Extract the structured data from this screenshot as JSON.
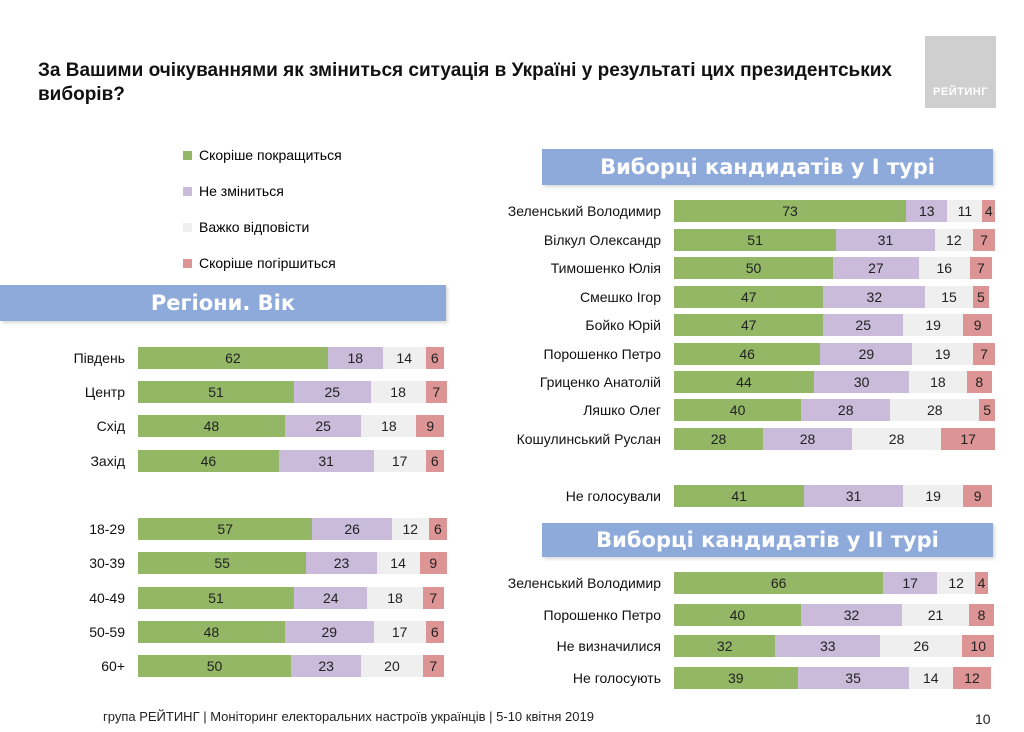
{
  "title": "За Вашими очікуваннями як зміниться ситуація в Україні у результаті цих президентських виборів?",
  "logo_text": "РЕЙТИНГ",
  "colors": {
    "better": "#93b765",
    "same": "#c9bbd9",
    "hard": "#efefef",
    "worse": "#dc9494",
    "banner": "#8eaadb"
  },
  "legend": [
    {
      "label": "Скоріше покращиться",
      "key": "better"
    },
    {
      "label": "Не зміниться",
      "key": "same"
    },
    {
      "label": "Важко відповісти",
      "key": "hard"
    },
    {
      "label": "Скоріше погіршиться",
      "key": "worse"
    }
  ],
  "banners": {
    "regions": "Регіони. Вік",
    "round1": "Виборці кандидатів у І турі",
    "round2": "Виборці кандидатів у ІІ турі"
  },
  "footer": "група РЕЙТИНГ | Моніторинг електоральних настроїв українців  |  5-10 квітня 2019",
  "page_number": "10",
  "chart_data": [
    {
      "type": "bar",
      "title": "Регіони. Вік",
      "stacked": true,
      "orientation": "horizontal",
      "series_names": [
        "Скоріше покращиться",
        "Не зміниться",
        "Важко відповісти",
        "Скоріше погіршиться"
      ],
      "rows": [
        {
          "label": "Південь",
          "values": [
            62,
            18,
            14,
            6
          ]
        },
        {
          "label": "Центр",
          "values": [
            51,
            25,
            18,
            7
          ]
        },
        {
          "label": "Схід",
          "values": [
            48,
            25,
            18,
            9
          ]
        },
        {
          "label": "Захід",
          "values": [
            46,
            31,
            17,
            6
          ]
        },
        {
          "label": "18-29",
          "values": [
            57,
            26,
            12,
            6
          ]
        },
        {
          "label": "30-39",
          "values": [
            55,
            23,
            14,
            9
          ]
        },
        {
          "label": "40-49",
          "values": [
            51,
            24,
            18,
            7
          ]
        },
        {
          "label": "50-59",
          "values": [
            48,
            29,
            17,
            6
          ]
        },
        {
          "label": "60+",
          "values": [
            50,
            23,
            20,
            7
          ]
        }
      ]
    },
    {
      "type": "bar",
      "title": "Виборці кандидатів у І турі",
      "stacked": true,
      "orientation": "horizontal",
      "series_names": [
        "Скоріше покращиться",
        "Не зміниться",
        "Важко відповісти",
        "Скоріше погіршиться"
      ],
      "rows": [
        {
          "label": "Зеленський Володимир",
          "values": [
            73,
            13,
            11,
            4
          ]
        },
        {
          "label": "Вілкул Олександр",
          "values": [
            51,
            31,
            12,
            7
          ]
        },
        {
          "label": "Тимошенко Юлія",
          "values": [
            50,
            27,
            16,
            7
          ]
        },
        {
          "label": "Смешко Ігор",
          "values": [
            47,
            32,
            15,
            5
          ]
        },
        {
          "label": "Бойко Юрій",
          "values": [
            47,
            25,
            19,
            9
          ]
        },
        {
          "label": "Порошенко Петро",
          "values": [
            46,
            29,
            19,
            7
          ]
        },
        {
          "label": "Гриценко Анатолій",
          "values": [
            44,
            30,
            18,
            8
          ]
        },
        {
          "label": "Ляшко Олег",
          "values": [
            40,
            28,
            28,
            5
          ]
        },
        {
          "label": "Кошулинський Руслан",
          "values": [
            28,
            28,
            28,
            17
          ]
        },
        {
          "label": "Не голосували",
          "values": [
            41,
            31,
            19,
            9
          ]
        }
      ]
    },
    {
      "type": "bar",
      "title": "Виборці кандидатів у ІІ турі",
      "stacked": true,
      "orientation": "horizontal",
      "series_names": [
        "Скоріше покращиться",
        "Не зміниться",
        "Важко відповісти",
        "Скоріше погіршиться"
      ],
      "rows": [
        {
          "label": "Зеленський Володимир",
          "values": [
            66,
            17,
            12,
            4
          ]
        },
        {
          "label": "Порошенко Петро",
          "values": [
            40,
            32,
            21,
            8
          ]
        },
        {
          "label": "Не визначилися",
          "values": [
            32,
            33,
            26,
            10
          ]
        },
        {
          "label": "Не голосують",
          "values": [
            39,
            35,
            14,
            12
          ]
        }
      ]
    }
  ]
}
